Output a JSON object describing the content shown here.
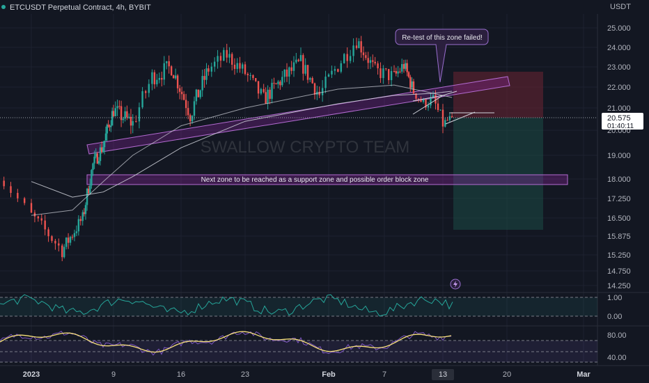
{
  "chart_data": {
    "type": "candlestick",
    "title": "ETCUSDT Perpetual Contract, 4h, BYBIT",
    "watermark": "SWALLOW CRYPTO TEAM",
    "currency_label": "USDT",
    "price_axis_ticks": [
      "25.000",
      "24.000",
      "23.000",
      "22.000",
      "21.000",
      "20.000",
      "19.000",
      "18.000",
      "17.250",
      "16.500",
      "15.875",
      "15.250",
      "14.750",
      "14.250"
    ],
    "current_price": "20.575",
    "countdown": "01:40:11",
    "date_ticks": [
      "2023",
      "9",
      "16",
      "23",
      "Feb",
      "7",
      "13",
      "20",
      "Mar"
    ],
    "annotations": {
      "callout": "Re-test of this zone failed!",
      "support_zone": "Next zone to be reached as a support zone and possible order block zone"
    },
    "oscillator_1": {
      "ticks": [
        "1.00",
        "0.00"
      ]
    },
    "oscillator_2": {
      "ticks": [
        "80.00",
        "40.00"
      ]
    },
    "colors": {
      "background": "#131722",
      "up_candle": "#26a69a",
      "down_candle": "#ef5350",
      "ma_line": "#d1d4dc",
      "zone_fill": "#9c27b0",
      "stop_zone": "#6b2433",
      "target_zone": "#1c4a45",
      "oscillator_line": "#26a69a",
      "stoch_k": "#7e57c2",
      "stoch_d": "#f7e07a"
    },
    "ohlc_series": {
      "start": 18.5,
      "segments": [
        [
          "2023-01-01",
          16.6,
          6,
          0.25
        ],
        [
          "2023-01-04",
          15.4,
          9,
          0.25
        ],
        [
          "2023-01-06",
          16.5,
          10,
          0.25
        ],
        [
          "2023-01-07",
          18.6,
          7,
          0.3
        ],
        [
          "2023-01-08",
          19.4,
          7,
          0.3
        ],
        [
          "2023-01-09",
          20.9,
          8,
          0.35
        ],
        [
          "2023-01-11",
          20.3,
          10,
          0.4
        ],
        [
          "2023-01-13",
          22.5,
          6,
          0.45
        ],
        [
          "2023-01-15",
          23.0,
          8,
          0.45
        ],
        [
          "2023-01-17",
          20.7,
          9,
          0.4
        ],
        [
          "2023-01-19",
          22.9,
          9,
          0.45
        ],
        [
          "2023-01-21",
          23.6,
          6,
          0.4
        ],
        [
          "2023-01-23",
          22.7,
          7,
          0.4
        ],
        [
          "2023-01-25",
          21.4,
          7,
          0.4
        ],
        [
          "2023-01-27",
          22.4,
          9,
          0.4
        ],
        [
          "2023-01-29",
          23.2,
          8,
          0.45
        ],
        [
          "2023-01-31",
          21.6,
          8,
          0.4
        ],
        [
          "2023-02-02",
          23.1,
          6,
          0.45
        ],
        [
          "2023-02-04",
          24.4,
          6,
          0.45
        ],
        [
          "2023-02-06",
          22.8,
          8,
          0.4
        ],
        [
          "2023-02-08",
          22.5,
          7,
          0.4
        ],
        [
          "2023-02-09",
          23.1,
          5,
          0.4
        ],
        [
          "2023-02-10",
          21.8,
          6,
          0.35
        ],
        [
          "2023-02-11",
          21.2,
          4,
          0.3
        ],
        [
          "2023-02-12",
          21.4,
          4,
          0.3
        ],
        [
          "2023-02-13",
          20.3,
          4,
          0.35
        ],
        [
          "2023-02-14",
          20.575,
          4,
          0.2
        ]
      ]
    },
    "moving_averages": [
      {
        "points": [
          [
            "2023-01-01",
            17.9
          ],
          [
            "2023-01-05",
            17.3
          ],
          [
            "2023-01-08",
            17.5
          ],
          [
            "2023-01-11",
            18.1
          ],
          [
            "2023-01-16",
            19.3
          ],
          [
            "2023-01-23",
            20.4
          ],
          [
            "2023-02-02",
            21.2
          ],
          [
            "2023-02-08",
            21.6
          ],
          [
            "2023-02-12",
            21.7
          ],
          [
            "2023-02-14",
            21.8
          ]
        ]
      },
      {
        "points": [
          [
            "2023-01-01",
            16.6
          ],
          [
            "2023-01-05",
            16.8
          ],
          [
            "2023-01-08",
            17.9
          ],
          [
            "2023-01-11",
            19.0
          ],
          [
            "2023-01-16",
            20.2
          ],
          [
            "2023-01-23",
            21.0
          ],
          [
            "2023-02-02",
            21.9
          ],
          [
            "2023-02-08",
            22.1
          ],
          [
            "2023-02-12",
            21.7
          ],
          [
            "2023-02-14",
            21.5
          ]
        ]
      }
    ]
  }
}
